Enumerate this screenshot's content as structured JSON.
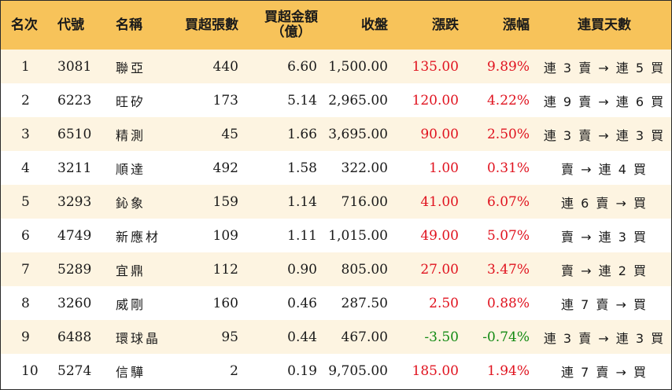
{
  "headers": {
    "rank": "名次",
    "code": "代號",
    "name": "名稱",
    "buy_lots": "買超張數",
    "buy_amount_line1": "買超金額",
    "buy_amount_line2": "（億）",
    "close": "收盤",
    "change": "漲跌",
    "change_pct": "漲幅",
    "streak": "連買天數"
  },
  "rows": [
    {
      "rank": "1",
      "code": "3081",
      "name": "聯亞",
      "buy_lots": "440",
      "buy_amount": "6.60",
      "close": "1,500.00",
      "change": "135.00",
      "change_pct": "9.89%",
      "direction": "up",
      "streak": "連 3 賣 → 連 5 買"
    },
    {
      "rank": "2",
      "code": "6223",
      "name": "旺矽",
      "buy_lots": "173",
      "buy_amount": "5.14",
      "close": "2,965.00",
      "change": "120.00",
      "change_pct": "4.22%",
      "direction": "up",
      "streak": "連 9 賣 → 連 6 買"
    },
    {
      "rank": "3",
      "code": "6510",
      "name": "精測",
      "buy_lots": "45",
      "buy_amount": "1.66",
      "close": "3,695.00",
      "change": "90.00",
      "change_pct": "2.50%",
      "direction": "up",
      "streak": "連 3 賣 → 連 3 買"
    },
    {
      "rank": "4",
      "code": "3211",
      "name": "順達",
      "buy_lots": "492",
      "buy_amount": "1.58",
      "close": "322.00",
      "change": "1.00",
      "change_pct": "0.31%",
      "direction": "up",
      "streak": "賣 → 連 4 買"
    },
    {
      "rank": "5",
      "code": "3293",
      "name": "鈊象",
      "buy_lots": "159",
      "buy_amount": "1.14",
      "close": "716.00",
      "change": "41.00",
      "change_pct": "6.07%",
      "direction": "up",
      "streak": "連 6 賣 → 買"
    },
    {
      "rank": "6",
      "code": "4749",
      "name": "新應材",
      "buy_lots": "109",
      "buy_amount": "1.11",
      "close": "1,015.00",
      "change": "49.00",
      "change_pct": "5.07%",
      "direction": "up",
      "streak": "賣 → 連 3 買"
    },
    {
      "rank": "7",
      "code": "5289",
      "name": "宜鼎",
      "buy_lots": "112",
      "buy_amount": "0.90",
      "close": "805.00",
      "change": "27.00",
      "change_pct": "3.47%",
      "direction": "up",
      "streak": "賣 → 連 2 買"
    },
    {
      "rank": "8",
      "code": "3260",
      "name": "威剛",
      "buy_lots": "160",
      "buy_amount": "0.46",
      "close": "287.50",
      "change": "2.50",
      "change_pct": "0.88%",
      "direction": "up",
      "streak": "連 7 賣 → 買"
    },
    {
      "rank": "9",
      "code": "6488",
      "name": "環球晶",
      "buy_lots": "95",
      "buy_amount": "0.44",
      "close": "467.00",
      "change": "-3.50",
      "change_pct": "-0.74%",
      "direction": "down",
      "streak": "連 3 賣 → 連 3 買"
    },
    {
      "rank": "10",
      "code": "5274",
      "name": "信驊",
      "buy_lots": "2",
      "buy_amount": "0.19",
      "close": "9,705.00",
      "change": "185.00",
      "change_pct": "1.94%",
      "direction": "up",
      "streak": "連 7 賣 → 買"
    }
  ],
  "colors": {
    "header_bg": "#f7c35a",
    "odd_row_bg": "#fdf4e1",
    "up": "#e0131f",
    "down": "#138a13"
  }
}
